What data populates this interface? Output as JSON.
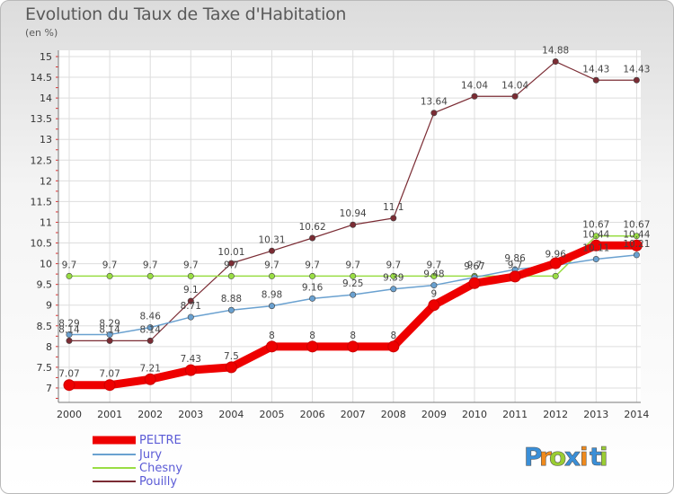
{
  "chart_data": {
    "type": "line",
    "title": "Evolution du Taux de Taxe d'Habitation",
    "ylabel": "(en %)",
    "x": [
      2000,
      2001,
      2002,
      2003,
      2004,
      2005,
      2006,
      2007,
      2008,
      2009,
      2010,
      2011,
      2012,
      2013,
      2014
    ],
    "ylim": [
      6.5,
      15
    ],
    "yticks": [
      6.5,
      7,
      7.5,
      8,
      8.5,
      9,
      9.5,
      10,
      10.5,
      11,
      11.5,
      12,
      12.5,
      13,
      13.5,
      14,
      14.5,
      15
    ],
    "grid": true,
    "legend_position": "bottom-left",
    "series": [
      {
        "name": "PELTRE",
        "color": "#ee0000",
        "width": 9,
        "values": [
          7.07,
          7.07,
          7.21,
          7.43,
          7.5,
          8,
          8,
          8,
          8,
          9,
          9.53,
          9.69,
          10.01,
          10.44,
          10.44
        ],
        "labels": [
          "7.07",
          "7.07",
          "7.21",
          "7.43",
          "7.5",
          "8",
          "8",
          "8",
          "8",
          "9",
          "",
          "",
          "",
          "10.44",
          "10.44"
        ]
      },
      {
        "name": "Jury",
        "color": "#6aa1d0",
        "width": 1.5,
        "values": [
          8.29,
          8.29,
          8.46,
          8.71,
          8.88,
          8.98,
          9.16,
          9.25,
          9.39,
          9.48,
          9.67,
          9.86,
          9.96,
          10.11,
          10.21
        ],
        "labels": [
          "8.29",
          "8.29",
          "8.46",
          "8.71",
          "8.88",
          "8.98",
          "9.16",
          "9.25",
          "9.39",
          "9.48",
          "9.67",
          "9.86",
          "9.96",
          "10.11",
          "10.21"
        ]
      },
      {
        "name": "Chesny",
        "color": "#99dd44",
        "width": 1.5,
        "values": [
          9.7,
          9.7,
          9.7,
          9.7,
          9.7,
          9.7,
          9.7,
          9.7,
          9.7,
          9.7,
          9.7,
          9.7,
          9.7,
          10.67,
          10.67
        ],
        "labels": [
          "9.7",
          "9.7",
          "9.7",
          "9.7",
          "9.7",
          "9.7",
          "9.7",
          "9.7",
          "9.7",
          "9.7",
          "9.7",
          "9.7",
          "",
          "10.67",
          "10.67"
        ]
      },
      {
        "name": "Pouilly",
        "color": "#7b2c34",
        "width": 1.2,
        "values": [
          8.14,
          8.14,
          8.14,
          9.1,
          10.01,
          10.31,
          10.62,
          10.94,
          11.1,
          13.64,
          14.04,
          14.04,
          14.88,
          14.43,
          14.43
        ],
        "labels": [
          "8.14",
          "8.14",
          "8.14",
          "9.1",
          "10.01",
          "10.31",
          "10.62",
          "10.94",
          "11.1",
          "13.64",
          "14.04",
          "14.04",
          "14.88",
          "14.43",
          "14.43"
        ]
      }
    ]
  },
  "logo": {
    "letters": [
      "P",
      "r",
      "o",
      "x",
      "i",
      "t",
      "i"
    ],
    "colors": [
      "#3a8fd8",
      "#f08a1c",
      "#9acd32",
      "#3a8fd8",
      "#f08a1c",
      "#3a8fd8",
      "#9acd32"
    ]
  }
}
